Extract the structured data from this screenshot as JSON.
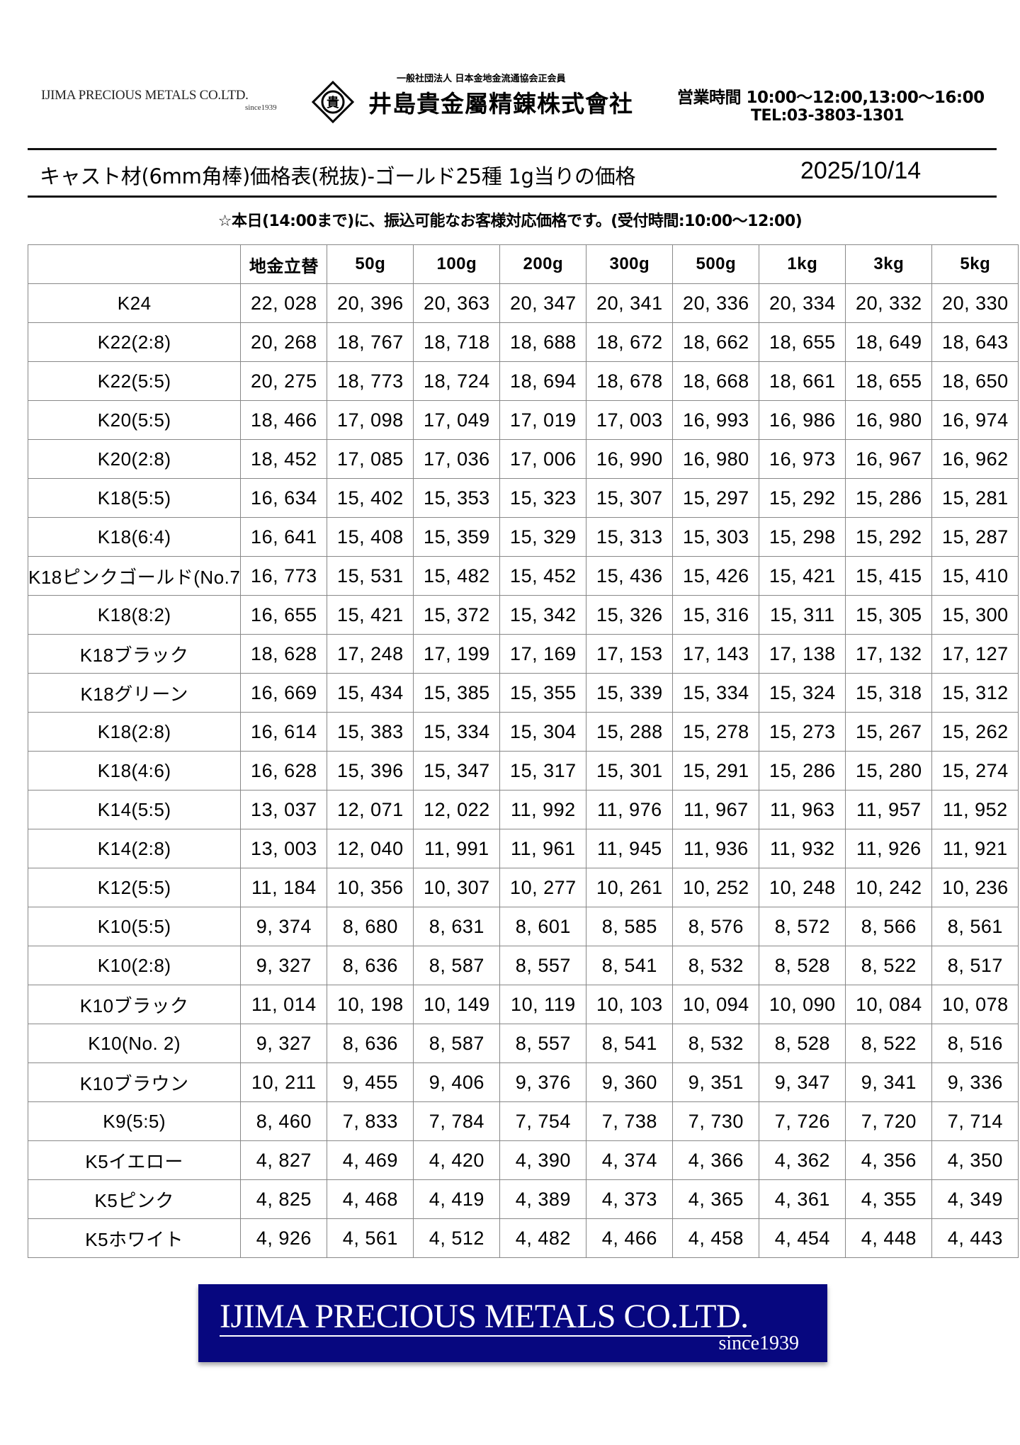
{
  "header": {
    "logo_text": "IJIMA PRECIOUS METALS CO.LTD.",
    "logo_since": "since1939",
    "association": "一般社団法人  日本金地金流通協会正会員",
    "company_name": "井島貴金屬精錬株式會社",
    "emblem_char": "貴",
    "hours": "営業時間 10:00～12:00,13:00～16:00",
    "tel": "TEL:03-3803-1301"
  },
  "title": "キャスト材(6mm角棒)価格表(税抜)-ゴールド25種  1g当りの価格",
  "date": "2025/10/14",
  "notice": "☆本日(14:00まで)に、振込可能なお客様対応価格です。(受付時間:10:00～12:00)",
  "table": {
    "columns": [
      "",
      "地金立替",
      "50g",
      "100g",
      "200g",
      "300g",
      "500g",
      "1kg",
      "3kg",
      "5kg"
    ],
    "rows": [
      [
        "K24",
        "22, 028",
        "20, 396",
        "20, 363",
        "20, 347",
        "20, 341",
        "20, 336",
        "20, 334",
        "20, 332",
        "20, 330"
      ],
      [
        "K22(2:8)",
        "20, 268",
        "18, 767",
        "18, 718",
        "18, 688",
        "18, 672",
        "18, 662",
        "18, 655",
        "18, 649",
        "18, 643"
      ],
      [
        "K22(5:5)",
        "20, 275",
        "18, 773",
        "18, 724",
        "18, 694",
        "18, 678",
        "18, 668",
        "18, 661",
        "18, 655",
        "18, 650"
      ],
      [
        "K20(5:5)",
        "18, 466",
        "17, 098",
        "17, 049",
        "17, 019",
        "17, 003",
        "16, 993",
        "16, 986",
        "16, 980",
        "16, 974"
      ],
      [
        "K20(2:8)",
        "18, 452",
        "17, 085",
        "17, 036",
        "17, 006",
        "16, 990",
        "16, 980",
        "16, 973",
        "16, 967",
        "16, 962"
      ],
      [
        "K18(5:5)",
        "16, 634",
        "15, 402",
        "15, 353",
        "15, 323",
        "15, 307",
        "15, 297",
        "15, 292",
        "15, 286",
        "15, 281"
      ],
      [
        "K18(6:4)",
        "16, 641",
        "15, 408",
        "15, 359",
        "15, 329",
        "15, 313",
        "15, 303",
        "15, 298",
        "15, 292",
        "15, 287"
      ],
      [
        "K18ピンクゴールド(No.7",
        "16, 773",
        "15, 531",
        "15, 482",
        "15, 452",
        "15, 436",
        "15, 426",
        "15, 421",
        "15, 415",
        "15, 410"
      ],
      [
        "K18(8:2)",
        "16, 655",
        "15, 421",
        "15, 372",
        "15, 342",
        "15, 326",
        "15, 316",
        "15, 311",
        "15, 305",
        "15, 300"
      ],
      [
        "K18ブラック",
        "18, 628",
        "17, 248",
        "17, 199",
        "17, 169",
        "17, 153",
        "17, 143",
        "17, 138",
        "17, 132",
        "17, 127"
      ],
      [
        "K18グリーン",
        "16, 669",
        "15, 434",
        "15, 385",
        "15, 355",
        "15, 339",
        "15, 334",
        "15, 324",
        "15, 318",
        "15, 312"
      ],
      [
        "K18(2:8)",
        "16, 614",
        "15, 383",
        "15, 334",
        "15, 304",
        "15, 288",
        "15, 278",
        "15, 273",
        "15, 267",
        "15, 262"
      ],
      [
        "K18(4:6)",
        "16, 628",
        "15, 396",
        "15, 347",
        "15, 317",
        "15, 301",
        "15, 291",
        "15, 286",
        "15, 280",
        "15, 274"
      ],
      [
        "K14(5:5)",
        "13, 037",
        "12, 071",
        "12, 022",
        "11, 992",
        "11, 976",
        "11, 967",
        "11, 963",
        "11, 957",
        "11, 952"
      ],
      [
        "K14(2:8)",
        "13, 003",
        "12, 040",
        "11, 991",
        "11, 961",
        "11, 945",
        "11, 936",
        "11, 932",
        "11, 926",
        "11, 921"
      ],
      [
        "K12(5:5)",
        "11, 184",
        "10, 356",
        "10, 307",
        "10, 277",
        "10, 261",
        "10, 252",
        "10, 248",
        "10, 242",
        "10, 236"
      ],
      [
        "K10(5:5)",
        "9, 374",
        "8, 680",
        "8, 631",
        "8, 601",
        "8, 585",
        "8, 576",
        "8, 572",
        "8, 566",
        "8, 561"
      ],
      [
        "K10(2:8)",
        "9, 327",
        "8, 636",
        "8, 587",
        "8, 557",
        "8, 541",
        "8, 532",
        "8, 528",
        "8, 522",
        "8, 517"
      ],
      [
        "K10ブラック",
        "11, 014",
        "10, 198",
        "10, 149",
        "10, 119",
        "10, 103",
        "10, 094",
        "10, 090",
        "10, 084",
        "10, 078"
      ],
      [
        "K10(No. 2)",
        "9, 327",
        "8, 636",
        "8, 587",
        "8, 557",
        "8, 541",
        "8, 532",
        "8, 528",
        "8, 522",
        "8, 516"
      ],
      [
        "K10ブラウン",
        "10, 211",
        "9, 455",
        "9, 406",
        "9, 376",
        "9, 360",
        "9, 351",
        "9, 347",
        "9, 341",
        "9, 336"
      ],
      [
        "K9(5:5)",
        "8, 460",
        "7, 833",
        "7, 784",
        "7, 754",
        "7, 738",
        "7, 730",
        "7, 726",
        "7, 720",
        "7, 714"
      ],
      [
        "K5イエロー",
        "4, 827",
        "4, 469",
        "4, 420",
        "4, 390",
        "4, 374",
        "4, 366",
        "4, 362",
        "4, 356",
        "4, 350"
      ],
      [
        "K5ピンク",
        "4, 825",
        "4, 468",
        "4, 419",
        "4, 389",
        "4, 373",
        "4, 365",
        "4, 361",
        "4, 355",
        "4, 349"
      ],
      [
        "K5ホワイト",
        "4, 926",
        "4, 561",
        "4, 512",
        "4, 482",
        "4, 466",
        "4, 458",
        "4, 454",
        "4, 448",
        "4, 443"
      ]
    ]
  },
  "banner": {
    "name": "IJIMA PRECIOUS METALS CO.LTD.",
    "since": "since1939",
    "color": "#07077f"
  }
}
